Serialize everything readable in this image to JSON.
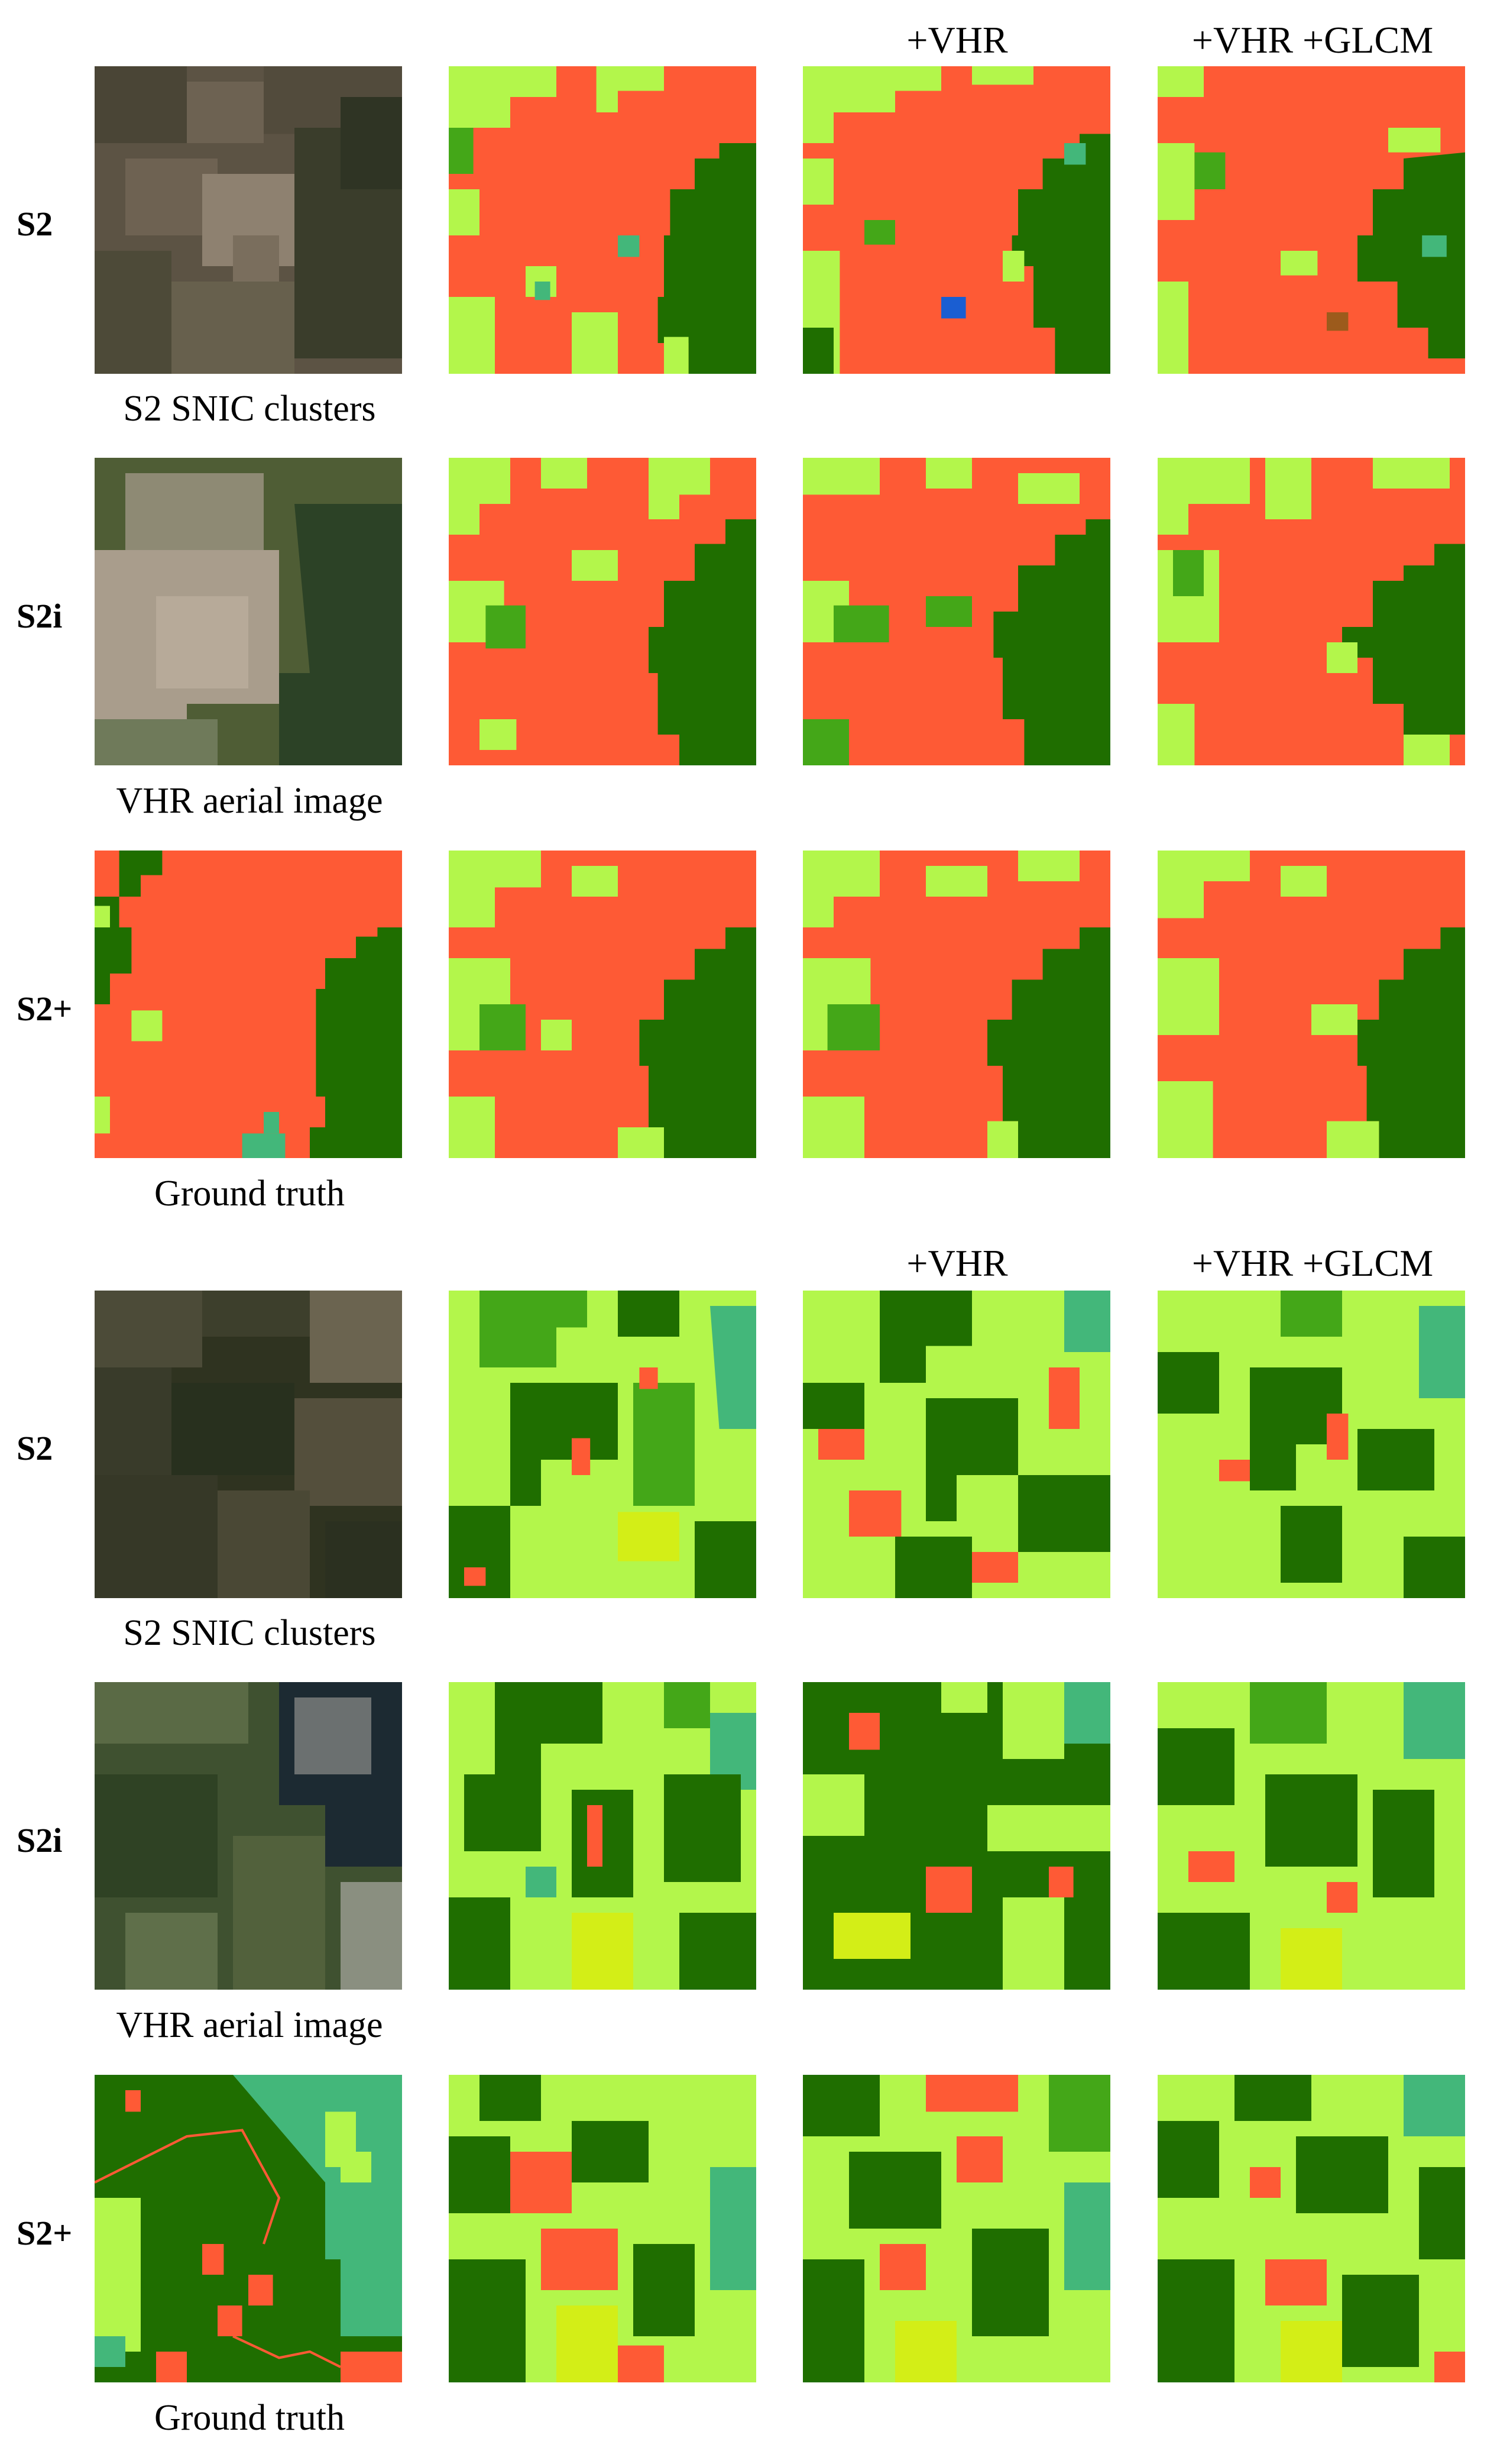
{
  "colors": {
    "urban": "#fe5a35",
    "grass": "#b3f64b",
    "crop": "#d3ee17",
    "forest_dark": "#1f6e00",
    "forest_mid": "#44a718",
    "shrub": "#43b77a",
    "water": "#1a5ed2",
    "soil": "#9c5b1c",
    "s2_base": "#5c5344",
    "s2_dark": "#3a3d2b",
    "s2_light": "#8e8170",
    "aerial_base": "#4f5d35",
    "aerial_urban": "#a99d8c",
    "aerial_forest": "#2c4226",
    "aerial_dark": "#1c2a32"
  },
  "panels": [
    {
      "id": "panel-1",
      "column_headers": [
        "+VHR",
        "+VHR +GLCM"
      ],
      "row_labels": [
        "S2",
        "S2i",
        "S2+"
      ],
      "captions": [
        "S2 SNIC clusters",
        "VHR aerial image",
        "Ground truth"
      ]
    },
    {
      "id": "panel-2",
      "column_headers": [
        "+VHR",
        "+VHR +GLCM"
      ],
      "row_labels": [
        "S2",
        "S2i",
        "S2+"
      ],
      "captions": [
        "S2 SNIC clusters",
        "VHR aerial image",
        "Ground truth"
      ]
    }
  ]
}
